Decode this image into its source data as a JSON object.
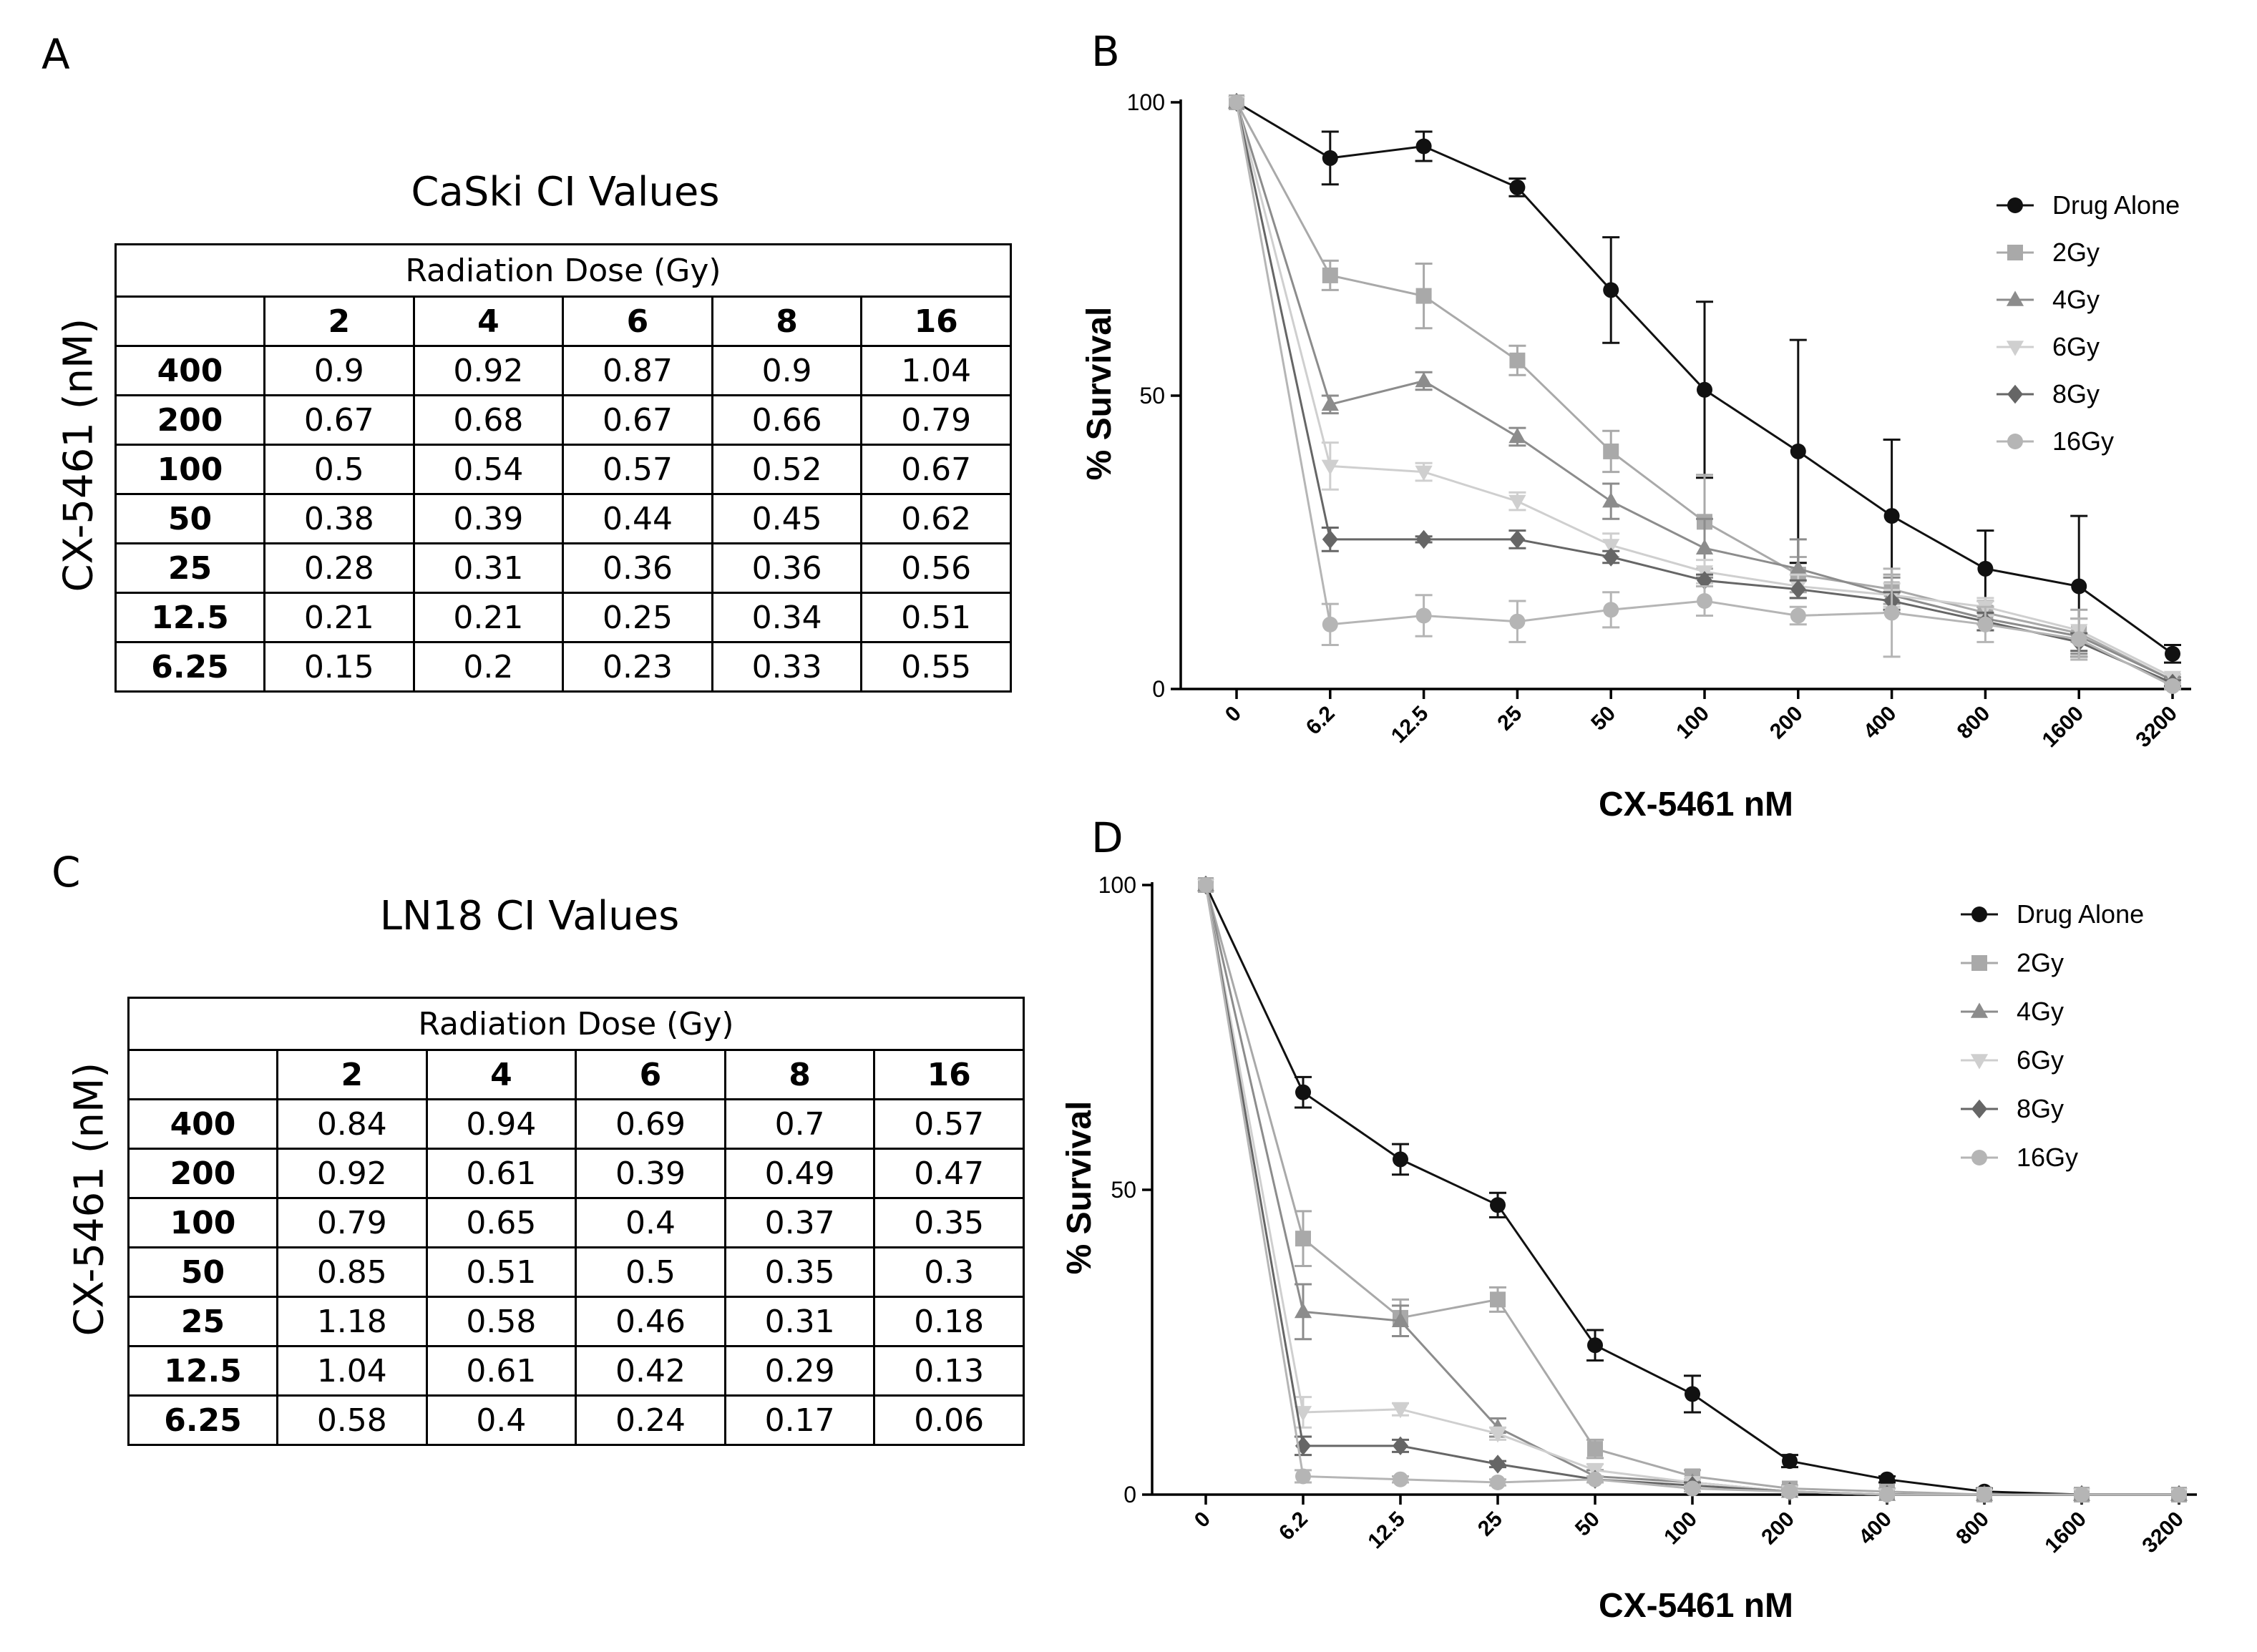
{
  "panels": {
    "A": {
      "letter": "A",
      "title": "CaSki CI Values"
    },
    "B": {
      "letter": "B"
    },
    "C": {
      "letter": "C",
      "title": "LN18 CI Values"
    },
    "D": {
      "letter": "D"
    }
  },
  "tables": {
    "caski": {
      "super_header": "Radiation Dose (Gy)",
      "row_axis_label": "CX-5461 (nM)",
      "columns": [
        "2",
        "4",
        "6",
        "8",
        "16"
      ],
      "rows": [
        {
          "label": "400",
          "values": [
            "0.9",
            "0.92",
            "0.87",
            "0.9",
            "1.04"
          ]
        },
        {
          "label": "200",
          "values": [
            "0.67",
            "0.68",
            "0.67",
            "0.66",
            "0.79"
          ]
        },
        {
          "label": "100",
          "values": [
            "0.5",
            "0.54",
            "0.57",
            "0.52",
            "0.67"
          ]
        },
        {
          "label": "50",
          "values": [
            "0.38",
            "0.39",
            "0.44",
            "0.45",
            "0.62"
          ]
        },
        {
          "label": "25",
          "values": [
            "0.28",
            "0.31",
            "0.36",
            "0.36",
            "0.56"
          ]
        },
        {
          "label": "12.5",
          "values": [
            "0.21",
            "0.21",
            "0.25",
            "0.34",
            "0.51"
          ]
        },
        {
          "label": "6.25",
          "values": [
            "0.15",
            "0.2",
            "0.23",
            "0.33",
            "0.55"
          ]
        }
      ]
    },
    "ln18": {
      "super_header": "Radiation Dose (Gy)",
      "row_axis_label": "CX-5461 (nM)",
      "columns": [
        "2",
        "4",
        "6",
        "8",
        "16"
      ],
      "rows": [
        {
          "label": "400",
          "values": [
            "0.84",
            "0.94",
            "0.69",
            "0.7",
            "0.57"
          ]
        },
        {
          "label": "200",
          "values": [
            "0.92",
            "0.61",
            "0.39",
            "0.49",
            "0.47"
          ]
        },
        {
          "label": "100",
          "values": [
            "0.79",
            "0.65",
            "0.4",
            "0.37",
            "0.35"
          ]
        },
        {
          "label": "50",
          "values": [
            "0.85",
            "0.51",
            "0.5",
            "0.35",
            "0.3"
          ]
        },
        {
          "label": "25",
          "values": [
            "1.18",
            "0.58",
            "0.46",
            "0.31",
            "0.18"
          ]
        },
        {
          "label": "12.5",
          "values": [
            "1.04",
            "0.61",
            "0.42",
            "0.29",
            "0.13"
          ]
        },
        {
          "label": "6.25",
          "values": [
            "0.58",
            "0.4",
            "0.24",
            "0.17",
            "0.06"
          ]
        }
      ]
    }
  },
  "colors": {
    "drug_alone": "#111111",
    "gy2": "#a9a9a9",
    "gy4": "#8c8c8c",
    "gy6": "#cfcfcf",
    "gy8": "#666666",
    "gy16": "#b5b5b5",
    "axis": "#000000"
  },
  "chart_data": [
    {
      "id": "B",
      "type": "line",
      "xlabel": "CX-5461 nM",
      "ylabel": "% Survival",
      "ylim": [
        0,
        100
      ],
      "yticks": [
        "0",
        "50",
        "100"
      ],
      "categories": [
        "0",
        "6.2",
        "12.5",
        "25",
        "50",
        "100",
        "200",
        "400",
        "800",
        "1600",
        "3200"
      ],
      "legend_position": "top-right",
      "series": [
        {
          "name": "Drug Alone",
          "marker": "circle",
          "color_key": "drug_alone",
          "values": [
            100,
            90.5,
            92.5,
            85.5,
            68,
            51,
            40.5,
            29.5,
            20.5,
            17.5,
            6
          ],
          "errors": [
            0,
            4.5,
            2.5,
            1.5,
            9,
            15,
            19,
            13,
            6.5,
            12,
            1.5
          ]
        },
        {
          "name": "2Gy",
          "marker": "square",
          "color_key": "gy2",
          "values": [
            100,
            70.5,
            67,
            56,
            40.5,
            28.5,
            19.5,
            17,
            13,
            9.5,
            1.5
          ],
          "errors": [
            0,
            2.5,
            5.5,
            2.5,
            3.5,
            8,
            3,
            2.5,
            2,
            4,
            0.5
          ]
        },
        {
          "name": "4Gy",
          "marker": "triangle",
          "color_key": "gy4",
          "values": [
            100,
            48.5,
            52.5,
            43,
            32,
            24,
            20.5,
            16,
            12,
            9,
            1.5
          ],
          "errors": [
            0,
            1.5,
            1.5,
            1.5,
            3,
            5,
            5,
            3,
            2,
            3,
            0.5
          ]
        },
        {
          "name": "6Gy",
          "marker": "triangle-down",
          "color_key": "gy6",
          "values": [
            100,
            38,
            37,
            32,
            24.5,
            20,
            17.5,
            16,
            14,
            10,
            2
          ],
          "errors": [
            0,
            4,
            1.5,
            1.5,
            2,
            2,
            2,
            2,
            1.5,
            2,
            0.5
          ]
        },
        {
          "name": "8Gy",
          "marker": "diamond",
          "color_key": "gy8",
          "values": [
            100,
            25.5,
            25.5,
            25.5,
            22.5,
            18.5,
            17,
            15,
            11.5,
            8,
            1
          ],
          "errors": [
            0,
            2,
            0.5,
            1.5,
            1,
            1,
            1.5,
            1.5,
            1.5,
            1.5,
            0.5
          ]
        },
        {
          "name": "16Gy",
          "marker": "circle",
          "color_key": "gy16",
          "values": [
            100,
            11,
            12.5,
            11.5,
            13.5,
            15,
            12.5,
            13,
            11,
            8.5,
            0.5
          ],
          "errors": [
            0,
            3.5,
            3.5,
            3.5,
            3,
            2.5,
            1.5,
            7.5,
            3,
            3.5,
            0.5
          ]
        }
      ]
    },
    {
      "id": "D",
      "type": "line",
      "xlabel": "CX-5461 nM",
      "ylabel": "% Survival",
      "ylim": [
        0,
        100
      ],
      "yticks": [
        "0",
        "50",
        "100"
      ],
      "categories": [
        "0",
        "6.2",
        "12.5",
        "25",
        "50",
        "100",
        "200",
        "400",
        "800",
        "1600",
        "3200"
      ],
      "legend_position": "top-right",
      "series": [
        {
          "name": "Drug Alone",
          "marker": "circle",
          "color_key": "drug_alone",
          "values": [
            100,
            66,
            55,
            47.5,
            24.5,
            16.5,
            5.5,
            2.5,
            0.5,
            0,
            0
          ],
          "errors": [
            0,
            2.5,
            2.5,
            2,
            2.5,
            3,
            1,
            0.5,
            0.5,
            0,
            0
          ]
        },
        {
          "name": "2Gy",
          "marker": "square",
          "color_key": "gy2",
          "values": [
            100,
            42,
            29,
            32,
            7.5,
            3,
            1,
            0.5,
            0,
            0,
            0
          ],
          "errors": [
            0,
            4.5,
            3,
            2,
            1.5,
            1,
            0.5,
            0.5,
            0,
            0,
            0
          ]
        },
        {
          "name": "4Gy",
          "marker": "triangle",
          "color_key": "gy4",
          "values": [
            100,
            30,
            28.5,
            11,
            3,
            2,
            0.5,
            0,
            0,
            0,
            0
          ],
          "errors": [
            0,
            4.5,
            2.5,
            1.5,
            1,
            0.5,
            0.5,
            0,
            0,
            0,
            0
          ]
        },
        {
          "name": "6Gy",
          "marker": "triangle-down",
          "color_key": "gy6",
          "values": [
            100,
            13.5,
            14,
            10,
            4,
            2,
            0.5,
            0,
            0,
            0,
            0
          ],
          "errors": [
            0,
            2.5,
            1,
            1,
            1,
            0.5,
            0.5,
            0,
            0,
            0,
            0
          ]
        },
        {
          "name": "8Gy",
          "marker": "diamond",
          "color_key": "gy8",
          "values": [
            100,
            8,
            8,
            5,
            2.5,
            1.5,
            0.5,
            0,
            0,
            0,
            0
          ],
          "errors": [
            0,
            1.5,
            1,
            0.5,
            0.5,
            0.5,
            0.5,
            0,
            0,
            0,
            0
          ]
        },
        {
          "name": "16Gy",
          "marker": "circle",
          "color_key": "gy16",
          "values": [
            100,
            3,
            2.5,
            2,
            2.5,
            1,
            0.5,
            0,
            0,
            0,
            0
          ],
          "errors": [
            0,
            1,
            0.5,
            0.5,
            0.5,
            0.5,
            0.5,
            0,
            0,
            0,
            0
          ]
        }
      ]
    }
  ]
}
